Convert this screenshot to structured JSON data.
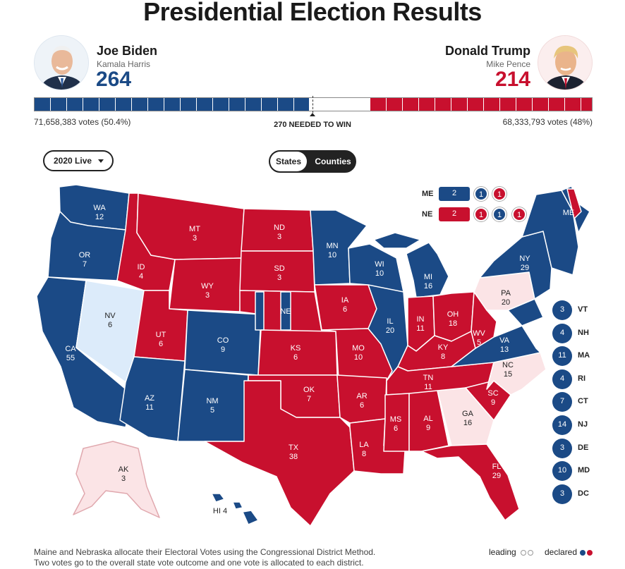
{
  "title": "Presidential Election Results",
  "colors": {
    "dem": "#1b4a86",
    "rep": "#c8102e",
    "dem_lean": "#dcebfa",
    "rep_lean": "#fbe4e6"
  },
  "candidates": {
    "dem": {
      "name": "Joe Biden",
      "vp": "Kamala Harris",
      "ev": "264",
      "votes": "71,658,383 votes (50.4%)",
      "avatar_icon": "biden-portrait-icon"
    },
    "rep": {
      "name": "Donald Trump",
      "vp": "Mike Pence",
      "ev": "214",
      "votes": "68,333,793 votes (48%)",
      "avatar_icon": "trump-portrait-icon"
    }
  },
  "needed_label": "270 NEEDED TO WIN",
  "controls": {
    "year_select": "2020 Live",
    "view_states": "States",
    "view_counties": "Counties"
  },
  "district_split": {
    "me": {
      "label": "ME",
      "statewide": "2",
      "districts": [
        "1",
        "1"
      ]
    },
    "ne": {
      "label": "NE",
      "statewide": "2",
      "districts": [
        "1",
        "1",
        "1"
      ]
    }
  },
  "map_states": [
    {
      "abbr": "WA",
      "ev": "12",
      "status": "dem"
    },
    {
      "abbr": "OR",
      "ev": "7",
      "status": "dem"
    },
    {
      "abbr": "CA",
      "ev": "55",
      "status": "dem"
    },
    {
      "abbr": "NV",
      "ev": "6",
      "status": "dem_lean"
    },
    {
      "abbr": "ID",
      "ev": "4",
      "status": "rep"
    },
    {
      "abbr": "MT",
      "ev": "3",
      "status": "rep"
    },
    {
      "abbr": "WY",
      "ev": "3",
      "status": "rep"
    },
    {
      "abbr": "UT",
      "ev": "6",
      "status": "rep"
    },
    {
      "abbr": "AZ",
      "ev": "11",
      "status": "dem"
    },
    {
      "abbr": "CO",
      "ev": "9",
      "status": "dem"
    },
    {
      "abbr": "NM",
      "ev": "5",
      "status": "dem"
    },
    {
      "abbr": "ND",
      "ev": "3",
      "status": "rep"
    },
    {
      "abbr": "SD",
      "ev": "3",
      "status": "rep"
    },
    {
      "abbr": "NE",
      "ev": "",
      "status": "rep"
    },
    {
      "abbr": "KS",
      "ev": "6",
      "status": "rep"
    },
    {
      "abbr": "OK",
      "ev": "7",
      "status": "rep"
    },
    {
      "abbr": "TX",
      "ev": "38",
      "status": "rep"
    },
    {
      "abbr": "MN",
      "ev": "10",
      "status": "dem"
    },
    {
      "abbr": "IA",
      "ev": "6",
      "status": "rep"
    },
    {
      "abbr": "MO",
      "ev": "10",
      "status": "rep"
    },
    {
      "abbr": "AR",
      "ev": "6",
      "status": "rep"
    },
    {
      "abbr": "LA",
      "ev": "8",
      "status": "rep"
    },
    {
      "abbr": "WI",
      "ev": "10",
      "status": "dem"
    },
    {
      "abbr": "IL",
      "ev": "20",
      "status": "dem"
    },
    {
      "abbr": "MI",
      "ev": "16",
      "status": "dem"
    },
    {
      "abbr": "IN",
      "ev": "11",
      "status": "rep"
    },
    {
      "abbr": "OH",
      "ev": "18",
      "status": "rep"
    },
    {
      "abbr": "KY",
      "ev": "8",
      "status": "rep"
    },
    {
      "abbr": "TN",
      "ev": "11",
      "status": "rep"
    },
    {
      "abbr": "MS",
      "ev": "6",
      "status": "rep"
    },
    {
      "abbr": "AL",
      "ev": "9",
      "status": "rep"
    },
    {
      "abbr": "GA",
      "ev": "16",
      "status": "rep_lean"
    },
    {
      "abbr": "FL",
      "ev": "29",
      "status": "rep"
    },
    {
      "abbr": "SC",
      "ev": "9",
      "status": "rep"
    },
    {
      "abbr": "NC",
      "ev": "15",
      "status": "rep_lean"
    },
    {
      "abbr": "VA",
      "ev": "13",
      "status": "dem"
    },
    {
      "abbr": "WV",
      "ev": "5",
      "status": "rep"
    },
    {
      "abbr": "PA",
      "ev": "20",
      "status": "rep_lean"
    },
    {
      "abbr": "NY",
      "ev": "29",
      "status": "dem"
    },
    {
      "abbr": "ME",
      "ev": "",
      "status": "dem"
    },
    {
      "abbr": "AK",
      "ev": "3",
      "status": "rep_lean"
    },
    {
      "abbr": "HI",
      "ev": "4",
      "status": "dem"
    }
  ],
  "small_states": [
    {
      "abbr": "VT",
      "ev": "3"
    },
    {
      "abbr": "NH",
      "ev": "4"
    },
    {
      "abbr": "MA",
      "ev": "11"
    },
    {
      "abbr": "RI",
      "ev": "4"
    },
    {
      "abbr": "CT",
      "ev": "7"
    },
    {
      "abbr": "NJ",
      "ev": "14"
    },
    {
      "abbr": "DE",
      "ev": "3"
    },
    {
      "abbr": "MD",
      "ev": "10"
    },
    {
      "abbr": "DC",
      "ev": "3"
    }
  ],
  "footnote": {
    "line1": "Maine and Nebraska allocate their Electoral Votes using the Congressional District Method.",
    "line2": "Two votes go to the overall state vote outcome and one vote is allocated to each district."
  },
  "legend": {
    "leading": "leading",
    "declared": "declared"
  }
}
